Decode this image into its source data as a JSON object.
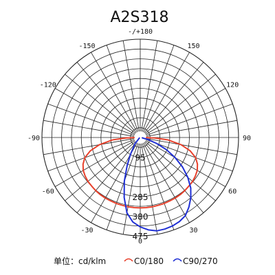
{
  "chart_data": {
    "type": "polar-line",
    "title": "A2S318",
    "angle_labels": [
      {
        "angle": 180,
        "text": "-/+180"
      },
      {
        "angle": -150,
        "text": "-150"
      },
      {
        "angle": 150,
        "text": "150"
      },
      {
        "angle": -120,
        "text": "-120"
      },
      {
        "angle": 120,
        "text": "120"
      },
      {
        "angle": -90,
        "text": "-90"
      },
      {
        "angle": 90,
        "text": "90"
      },
      {
        "angle": -60,
        "text": "-60"
      },
      {
        "angle": 60,
        "text": "60"
      },
      {
        "angle": -30,
        "text": "-30"
      },
      {
        "angle": 30,
        "text": "30"
      },
      {
        "angle": 0,
        "text": "0"
      }
    ],
    "radial_tick_labels": [
      {
        "value": 0,
        "text": "0"
      },
      {
        "value": 95,
        "text": "95"
      },
      {
        "value": 285,
        "text": "285"
      },
      {
        "value": 380,
        "text": "380"
      },
      {
        "value": 475,
        "text": "475"
      }
    ],
    "radial_max": 475,
    "ring_count": 10,
    "spoke_step_deg": 10,
    "unit_label": "单位：cd/klm",
    "series": [
      {
        "name": "C0/180",
        "color": "#e8412c",
        "points": [
          [
            -89,
            30
          ],
          [
            -88,
            70
          ],
          [
            -85,
            135
          ],
          [
            -80,
            200
          ],
          [
            -75,
            250
          ],
          [
            -70,
            285
          ],
          [
            -65,
            305
          ],
          [
            -60,
            318
          ],
          [
            -55,
            325
          ],
          [
            -50,
            330
          ],
          [
            -45,
            332
          ],
          [
            -40,
            335
          ],
          [
            -35,
            337
          ],
          [
            -30,
            338
          ],
          [
            -25,
            338
          ],
          [
            -20,
            339
          ],
          [
            -15,
            339
          ],
          [
            -10,
            340
          ],
          [
            -5,
            340
          ],
          [
            0,
            340
          ],
          [
            5,
            340
          ],
          [
            10,
            340
          ],
          [
            15,
            339
          ],
          [
            20,
            339
          ],
          [
            25,
            338
          ],
          [
            30,
            338
          ],
          [
            35,
            337
          ],
          [
            40,
            335
          ],
          [
            45,
            332
          ],
          [
            50,
            330
          ],
          [
            55,
            325
          ],
          [
            60,
            318
          ],
          [
            65,
            305
          ],
          [
            70,
            285
          ],
          [
            75,
            250
          ],
          [
            80,
            200
          ],
          [
            85,
            135
          ],
          [
            88,
            70
          ],
          [
            89,
            30
          ]
        ]
      },
      {
        "name": "C90/270",
        "color": "#1f2fd4",
        "points": [
          [
            -60,
            5
          ],
          [
            -40,
            40
          ],
          [
            -30,
            95
          ],
          [
            -25,
            150
          ],
          [
            -20,
            225
          ],
          [
            -15,
            300
          ],
          [
            -10,
            370
          ],
          [
            -5,
            410
          ],
          [
            0,
            432
          ],
          [
            5,
            448
          ],
          [
            10,
            458
          ],
          [
            15,
            458
          ],
          [
            20,
            455
          ],
          [
            25,
            448
          ],
          [
            30,
            436
          ],
          [
            35,
            410
          ],
          [
            40,
            380
          ],
          [
            45,
            345
          ],
          [
            50,
            300
          ],
          [
            55,
            250
          ],
          [
            60,
            195
          ],
          [
            65,
            140
          ],
          [
            70,
            85
          ],
          [
            75,
            40
          ],
          [
            80,
            10
          ]
        ]
      }
    ]
  }
}
